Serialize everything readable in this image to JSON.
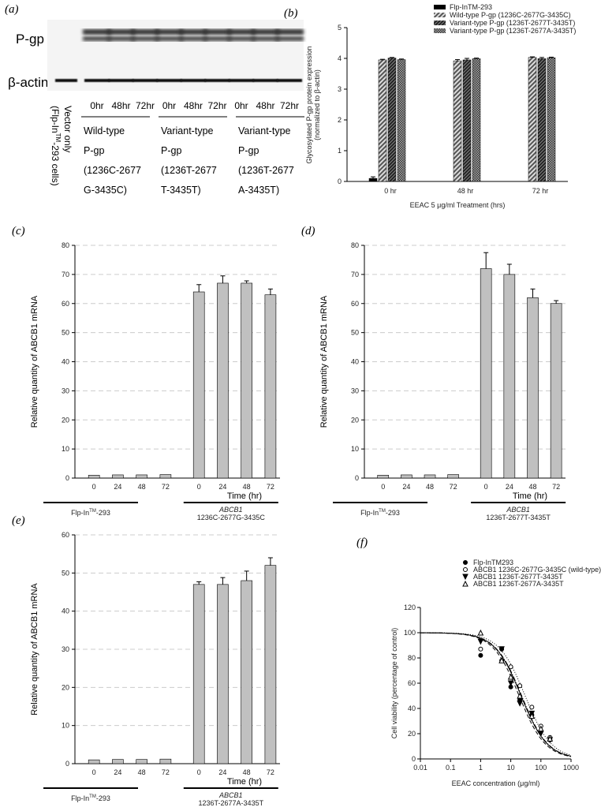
{
  "panel_a": {
    "letter": "(a)",
    "row_labels": [
      "P-gp",
      "β-actin"
    ],
    "vector_label": [
      "Vector only",
      "(Flp-In",
      "TM",
      "-293 cells)"
    ],
    "lanes": [
      "0hr",
      "48hr",
      "72hr",
      "0hr",
      "48hr",
      "72hr",
      "0hr",
      "48hr",
      "72hr"
    ],
    "groups": [
      [
        "Wild-type",
        "P-gp",
        "(1236C-2677",
        "G-3435C)"
      ],
      [
        "Variant-type",
        "P-gp",
        "(1236T-2677",
        "T-3435T)"
      ],
      [
        "Variant-type",
        "P-gp",
        "(1236T-2677",
        "A-3435T)"
      ]
    ]
  },
  "chart_data": [
    {
      "id": "b",
      "letter": "(b)",
      "type": "bar",
      "categories": [
        "0 hr",
        "48 hr",
        "72 hr"
      ],
      "xlabel": "EEAC 5 μg/ml Treatment (hrs)",
      "ylabel": [
        "Glycosylated P-gp protein expression",
        "(normalized to β-actin)"
      ],
      "ylim": [
        0,
        5
      ],
      "yticks": [
        0,
        1,
        2,
        3,
        4,
        5
      ],
      "grid": false,
      "legend": "top-right",
      "series": [
        {
          "name": "Flp-InTM-293",
          "values": [
            0.1,
            null,
            null
          ],
          "errors": [
            0.05,
            null,
            null
          ],
          "color": "#000000"
        },
        {
          "name": "Wild-type P-gp (1236C-2677G-3435C)",
          "values": [
            3.95,
            3.92,
            4.03
          ],
          "errors": [
            0.02,
            0.04,
            0.02
          ],
          "color": "#888888"
        },
        {
          "name": "Variant-type P-gp (1236T-2677T-3435T)",
          "values": [
            4.01,
            3.95,
            3.99
          ],
          "errors": [
            0.02,
            0.05,
            0.04
          ],
          "color": "#444444"
        },
        {
          "name": "Variant-type P-gp (1236T-2677A-3435T)",
          "values": [
            3.96,
            3.99,
            4.02
          ],
          "errors": [
            0.02,
            0.02,
            0.02
          ],
          "color": "#666666"
        }
      ]
    },
    {
      "id": "c",
      "letter": "(c)",
      "type": "bar",
      "categories": [
        "0",
        "24",
        "48",
        "72",
        "0",
        "24",
        "48",
        "72"
      ],
      "xlabel": "Time (hr)",
      "ylabel": "Relative quantity of ABCB1 mRNA",
      "ylim": [
        0,
        80
      ],
      "yticks": [
        0,
        10,
        20,
        30,
        40,
        50,
        60,
        70,
        80
      ],
      "grid": true,
      "values": [
        1,
        1.1,
        1.1,
        1.2,
        64,
        67,
        67,
        63
      ],
      "errors": [
        0,
        0,
        0,
        0,
        2.5,
        2.5,
        0.8,
        2
      ],
      "groups": [
        {
          "label": "Flp-In",
          "sup": "TM",
          "suffix": "-293"
        },
        {
          "label": "ABCB1",
          "sub": "1236C-2677G-3435C"
        }
      ]
    },
    {
      "id": "d",
      "letter": "(d)",
      "type": "bar",
      "categories": [
        "0",
        "24",
        "48",
        "72",
        "0",
        "24",
        "48",
        "72"
      ],
      "xlabel": "Time (hr)",
      "ylabel": "Relative quantity of ABCB1 mRNA",
      "ylim": [
        0,
        80
      ],
      "yticks": [
        0,
        10,
        20,
        30,
        40,
        50,
        60,
        70,
        80
      ],
      "grid": true,
      "values": [
        1,
        1.1,
        1.1,
        1.2,
        72,
        70,
        62,
        60
      ],
      "errors": [
        0,
        0,
        0,
        0,
        5.5,
        3.5,
        3,
        1
      ],
      "groups": [
        {
          "label": "Flp-In",
          "sup": "TM",
          "suffix": "-293"
        },
        {
          "label": "ABCB1",
          "sub": "1236T-2677T-3435T"
        }
      ]
    },
    {
      "id": "e",
      "letter": "(e)",
      "type": "bar",
      "categories": [
        "0",
        "24",
        "48",
        "72",
        "0",
        "24",
        "48",
        "72"
      ],
      "xlabel": "Time (hr)",
      "ylabel": "Relative quantity of ABCB1 mRNA",
      "ylim": [
        0,
        60
      ],
      "yticks": [
        0,
        10,
        20,
        30,
        40,
        50,
        60
      ],
      "grid": true,
      "values": [
        1,
        1.1,
        1.1,
        1.2,
        47,
        47,
        48,
        52
      ],
      "errors": [
        0,
        0,
        0,
        0,
        0.7,
        1.8,
        2.5,
        2
      ],
      "groups": [
        {
          "label": "Flp-In",
          "sup": "TM",
          "suffix": "-293"
        },
        {
          "label": "ABCB1",
          "sub": "1236T-2677A-3435T"
        }
      ]
    },
    {
      "id": "f",
      "letter": "(f)",
      "type": "scatter",
      "xscale": "log",
      "xlim": [
        0.01,
        1000
      ],
      "xticks": [
        "0.01",
        "0.1",
        "1",
        "10",
        "100",
        "1000"
      ],
      "ylim": [
        0,
        120
      ],
      "yticks": [
        0,
        20,
        40,
        60,
        80,
        100,
        120
      ],
      "xlabel": "EEAC concentration (μg/ml)",
      "ylabel": "Cell viability (percentage of control)",
      "legend": "top-right",
      "x": [
        1,
        5,
        10,
        20,
        50,
        100,
        200
      ],
      "series": [
        {
          "name": "Flp-InTM293",
          "marker": "filled-circle",
          "line": "solid",
          "values": [
            82,
            87,
            57,
            47,
            35,
            22,
            15
          ],
          "ic50": 22
        },
        {
          "name": "ABCB1 1236C-2677G-3435C (wild-type)",
          "marker": "open-circle",
          "line": "dotted",
          "values": [
            87,
            78,
            73,
            58,
            41,
            26,
            17
          ],
          "ic50": 30
        },
        {
          "name": "ABCB1 1236T-2677T-3435T",
          "marker": "filled-triangle-down",
          "line": "dashed",
          "values": [
            93,
            87,
            60,
            44,
            36,
            20,
            15
          ],
          "ic50": 19
        },
        {
          "name": "ABCB1 1236T-2677A-3435T",
          "marker": "open-triangle-up",
          "line": "dash-dot",
          "values": [
            100,
            78,
            65,
            50,
            34,
            24,
            16
          ],
          "ic50": 23
        }
      ]
    }
  ]
}
